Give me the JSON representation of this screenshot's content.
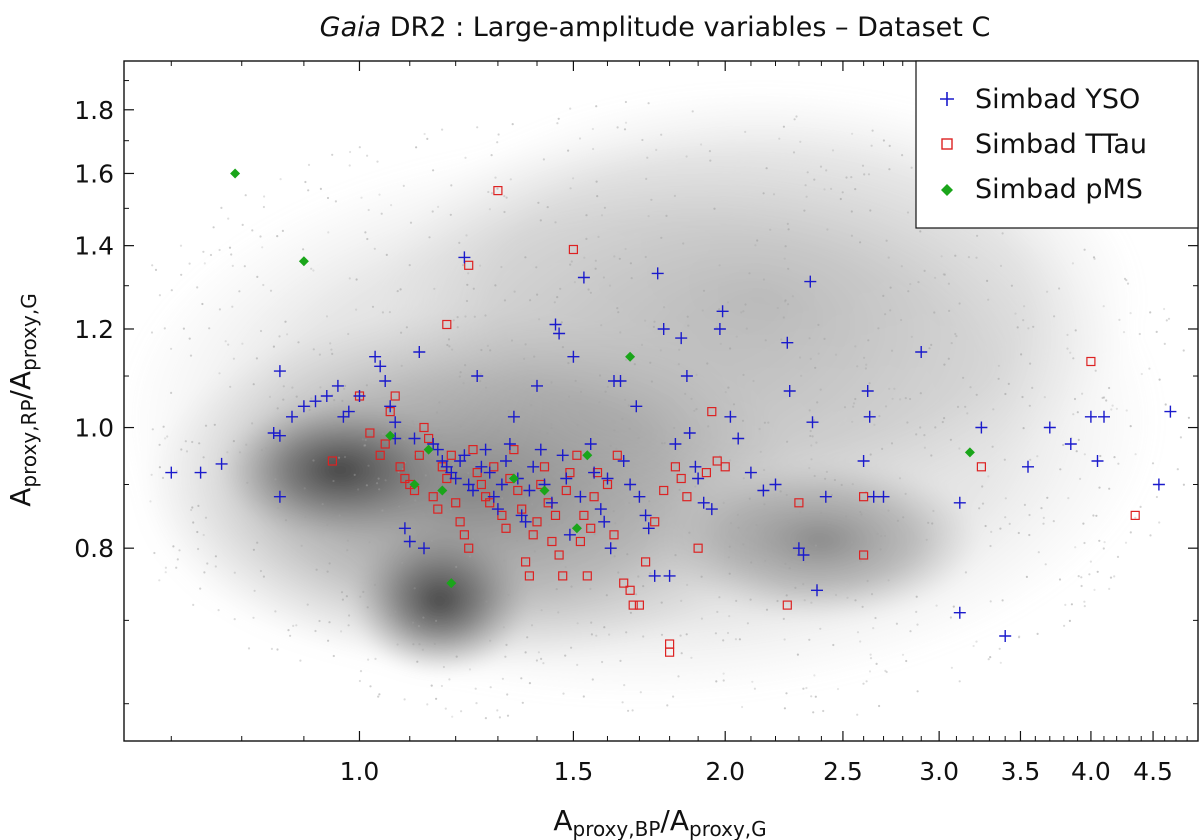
{
  "chart_data": {
    "type": "scatter",
    "title_italic": "Gaia",
    "title_rest": " DR2 :  Large-amplitude variables  –  Dataset C",
    "xlabel": {
      "main": "A",
      "sub1": "proxy,BP",
      "mid": "/A",
      "sub2": "proxy,G"
    },
    "ylabel": {
      "main": "A",
      "sub1": "proxy,RP",
      "mid": "/A",
      "sub2": "proxy,G"
    },
    "xscale": "log",
    "yscale": "log",
    "xlim": [
      0.64,
      4.9
    ],
    "ylim": [
      0.56,
      1.97
    ],
    "xticks": [
      1.0,
      1.5,
      2.0,
      2.5,
      3.0,
      3.5,
      4.0,
      4.5
    ],
    "xtick_labels": [
      "1.0",
      "1.5",
      "2.0",
      "2.5",
      "3.0",
      "3.5",
      "4.0",
      "4.5"
    ],
    "yticks": [
      0.8,
      1.0,
      1.2,
      1.4,
      1.6,
      1.8
    ],
    "ytick_labels": [
      "0.8",
      "1.0",
      "1.2",
      "1.4",
      "1.6",
      "1.8"
    ],
    "legend_position": "top-right",
    "background_density": "grey density cloud of all large-amplitude variables; dense cores near (1.03, 0.98) and (1.25, 0.75), broad cloud extending to x≈4.8, y≈1.6",
    "series": [
      {
        "name": "Simbad YSO",
        "marker": "plus",
        "color": "#1a1acc",
        "points": [
          [
            0.7,
            0.92
          ],
          [
            0.74,
            0.92
          ],
          [
            0.77,
            0.935
          ],
          [
            0.86,
            1.11
          ],
          [
            0.86,
            0.88
          ],
          [
            0.85,
            0.99
          ],
          [
            0.86,
            0.985
          ],
          [
            0.88,
            1.02
          ],
          [
            0.9,
            1.04
          ],
          [
            0.92,
            1.05
          ],
          [
            0.94,
            1.06
          ],
          [
            0.96,
            1.08
          ],
          [
            0.97,
            1.02
          ],
          [
            0.98,
            1.03
          ],
          [
            1.0,
            1.06
          ],
          [
            1.03,
            1.14
          ],
          [
            1.04,
            1.12
          ],
          [
            1.05,
            1.09
          ],
          [
            1.06,
            1.04
          ],
          [
            1.07,
            1.01
          ],
          [
            1.07,
            0.98
          ],
          [
            1.09,
            0.83
          ],
          [
            1.1,
            0.81
          ],
          [
            1.11,
            0.98
          ],
          [
            1.12,
            1.15
          ],
          [
            1.13,
            0.8
          ],
          [
            1.15,
            0.97
          ],
          [
            1.16,
            0.96
          ],
          [
            1.17,
            0.94
          ],
          [
            1.18,
            0.93
          ],
          [
            1.19,
            0.92
          ],
          [
            1.2,
            0.91
          ],
          [
            1.21,
            0.94
          ],
          [
            1.22,
            0.95
          ],
          [
            1.22,
            1.37
          ],
          [
            1.23,
            0.9
          ],
          [
            1.24,
            0.89
          ],
          [
            1.25,
            1.1
          ],
          [
            1.26,
            0.93
          ],
          [
            1.27,
            0.96
          ],
          [
            1.28,
            0.92
          ],
          [
            1.29,
            0.88
          ],
          [
            1.3,
            0.86
          ],
          [
            1.31,
            0.9
          ],
          [
            1.32,
            0.94
          ],
          [
            1.33,
            0.97
          ],
          [
            1.34,
            1.02
          ],
          [
            1.35,
            0.91
          ],
          [
            1.36,
            0.85
          ],
          [
            1.37,
            0.84
          ],
          [
            1.38,
            0.89
          ],
          [
            1.39,
            0.93
          ],
          [
            1.4,
            1.08
          ],
          [
            1.41,
            0.96
          ],
          [
            1.42,
            0.9
          ],
          [
            1.44,
            0.87
          ],
          [
            1.45,
            1.21
          ],
          [
            1.46,
            1.19
          ],
          [
            1.47,
            0.95
          ],
          [
            1.48,
            0.91
          ],
          [
            1.49,
            0.82
          ],
          [
            1.5,
            1.14
          ],
          [
            1.52,
            0.88
          ],
          [
            1.53,
            1.32
          ],
          [
            1.55,
            0.97
          ],
          [
            1.56,
            0.92
          ],
          [
            1.58,
            0.86
          ],
          [
            1.59,
            0.84
          ],
          [
            1.6,
            0.91
          ],
          [
            1.61,
            0.8
          ],
          [
            1.62,
            1.09
          ],
          [
            1.64,
            1.09
          ],
          [
            1.65,
            0.94
          ],
          [
            1.67,
            0.9
          ],
          [
            1.69,
            1.04
          ],
          [
            1.7,
            0.88
          ],
          [
            1.72,
            0.85
          ],
          [
            1.73,
            0.83
          ],
          [
            1.75,
            0.76
          ],
          [
            1.76,
            1.33
          ],
          [
            1.78,
            1.2
          ],
          [
            1.8,
            0.76
          ],
          [
            1.82,
            0.97
          ],
          [
            1.84,
            1.18
          ],
          [
            1.86,
            1.1
          ],
          [
            1.87,
            0.99
          ],
          [
            1.89,
            0.93
          ],
          [
            1.9,
            0.91
          ],
          [
            1.92,
            0.87
          ],
          [
            1.95,
            0.86
          ],
          [
            1.98,
            1.2
          ],
          [
            1.99,
            1.24
          ],
          [
            2.02,
            1.02
          ],
          [
            2.05,
            0.98
          ],
          [
            2.1,
            0.92
          ],
          [
            2.15,
            0.89
          ],
          [
            2.2,
            0.9
          ],
          [
            2.25,
            1.17
          ],
          [
            2.26,
            1.07
          ],
          [
            2.3,
            0.8
          ],
          [
            2.32,
            0.79
          ],
          [
            2.35,
            1.31
          ],
          [
            2.36,
            1.01
          ],
          [
            2.38,
            0.74
          ],
          [
            2.42,
            0.88
          ],
          [
            2.6,
            0.94
          ],
          [
            2.62,
            1.07
          ],
          [
            2.63,
            1.02
          ],
          [
            2.65,
            0.88
          ],
          [
            2.7,
            0.88
          ],
          [
            2.9,
            1.15
          ],
          [
            3.12,
            0.87
          ],
          [
            3.12,
            0.71
          ],
          [
            3.25,
            1.0
          ],
          [
            3.4,
            0.68
          ],
          [
            3.55,
            0.93
          ],
          [
            3.7,
            1.0
          ],
          [
            3.85,
            0.97
          ],
          [
            4.0,
            1.02
          ],
          [
            4.05,
            0.94
          ],
          [
            4.1,
            1.02
          ],
          [
            4.55,
            0.9
          ],
          [
            4.65,
            1.03
          ]
        ]
      },
      {
        "name": "Simbad TTau",
        "marker": "square",
        "color": "#dd2222",
        "points": [
          [
            0.95,
            0.94
          ],
          [
            1.0,
            1.06
          ],
          [
            1.02,
            0.99
          ],
          [
            1.04,
            0.95
          ],
          [
            1.05,
            0.97
          ],
          [
            1.06,
            1.03
          ],
          [
            1.07,
            1.06
          ],
          [
            1.08,
            0.93
          ],
          [
            1.09,
            0.91
          ],
          [
            1.1,
            0.9
          ],
          [
            1.11,
            0.89
          ],
          [
            1.12,
            0.95
          ],
          [
            1.13,
            1.0
          ],
          [
            1.14,
            0.98
          ],
          [
            1.15,
            0.88
          ],
          [
            1.16,
            0.86
          ],
          [
            1.17,
            0.93
          ],
          [
            1.18,
            0.91
          ],
          [
            1.18,
            1.21
          ],
          [
            1.19,
            0.95
          ],
          [
            1.2,
            0.87
          ],
          [
            1.21,
            0.84
          ],
          [
            1.22,
            0.82
          ],
          [
            1.23,
            0.8
          ],
          [
            1.23,
            1.35
          ],
          [
            1.24,
            0.96
          ],
          [
            1.25,
            0.92
          ],
          [
            1.26,
            0.9
          ],
          [
            1.27,
            0.88
          ],
          [
            1.28,
            0.87
          ],
          [
            1.29,
            0.93
          ],
          [
            1.3,
            1.55
          ],
          [
            1.31,
            0.85
          ],
          [
            1.32,
            0.83
          ],
          [
            1.33,
            0.91
          ],
          [
            1.34,
            0.96
          ],
          [
            1.35,
            0.89
          ],
          [
            1.36,
            0.86
          ],
          [
            1.37,
            0.78
          ],
          [
            1.38,
            0.76
          ],
          [
            1.39,
            0.82
          ],
          [
            1.4,
            0.84
          ],
          [
            1.41,
            0.9
          ],
          [
            1.42,
            0.93
          ],
          [
            1.43,
            0.87
          ],
          [
            1.44,
            0.81
          ],
          [
            1.45,
            0.85
          ],
          [
            1.46,
            0.79
          ],
          [
            1.47,
            0.76
          ],
          [
            1.48,
            0.89
          ],
          [
            1.49,
            0.92
          ],
          [
            1.5,
            1.39
          ],
          [
            1.51,
            0.95
          ],
          [
            1.52,
            0.81
          ],
          [
            1.53,
            0.85
          ],
          [
            1.54,
            0.76
          ],
          [
            1.55,
            0.83
          ],
          [
            1.56,
            0.88
          ],
          [
            1.57,
            0.92
          ],
          [
            1.6,
            0.9
          ],
          [
            1.62,
            0.82
          ],
          [
            1.63,
            0.95
          ],
          [
            1.65,
            0.75
          ],
          [
            1.67,
            0.74
          ],
          [
            1.68,
            0.72
          ],
          [
            1.7,
            0.72
          ],
          [
            1.72,
            0.78
          ],
          [
            1.75,
            0.84
          ],
          [
            1.78,
            0.89
          ],
          [
            1.8,
            0.67
          ],
          [
            1.8,
            0.66
          ],
          [
            1.82,
            0.93
          ],
          [
            1.84,
            0.91
          ],
          [
            1.86,
            0.88
          ],
          [
            1.9,
            0.8
          ],
          [
            1.93,
            0.92
          ],
          [
            1.95,
            1.03
          ],
          [
            1.97,
            0.94
          ],
          [
            2.0,
            0.93
          ],
          [
            2.25,
            0.72
          ],
          [
            2.3,
            0.87
          ],
          [
            2.6,
            0.88
          ],
          [
            2.6,
            0.79
          ],
          [
            3.25,
            0.93
          ],
          [
            4.0,
            1.13
          ],
          [
            4.35,
            0.85
          ]
        ]
      },
      {
        "name": "Simbad pMS",
        "marker": "diamond",
        "color": "#1aa51a",
        "points": [
          [
            0.79,
            1.6
          ],
          [
            0.9,
            1.36
          ],
          [
            1.06,
            0.985
          ],
          [
            1.11,
            0.9
          ],
          [
            1.14,
            0.96
          ],
          [
            1.17,
            0.89
          ],
          [
            1.19,
            0.75
          ],
          [
            1.34,
            0.91
          ],
          [
            1.42,
            0.89
          ],
          [
            1.51,
            0.83
          ],
          [
            1.54,
            0.95
          ],
          [
            1.67,
            1.14
          ],
          [
            3.18,
            0.955
          ]
        ]
      }
    ]
  }
}
